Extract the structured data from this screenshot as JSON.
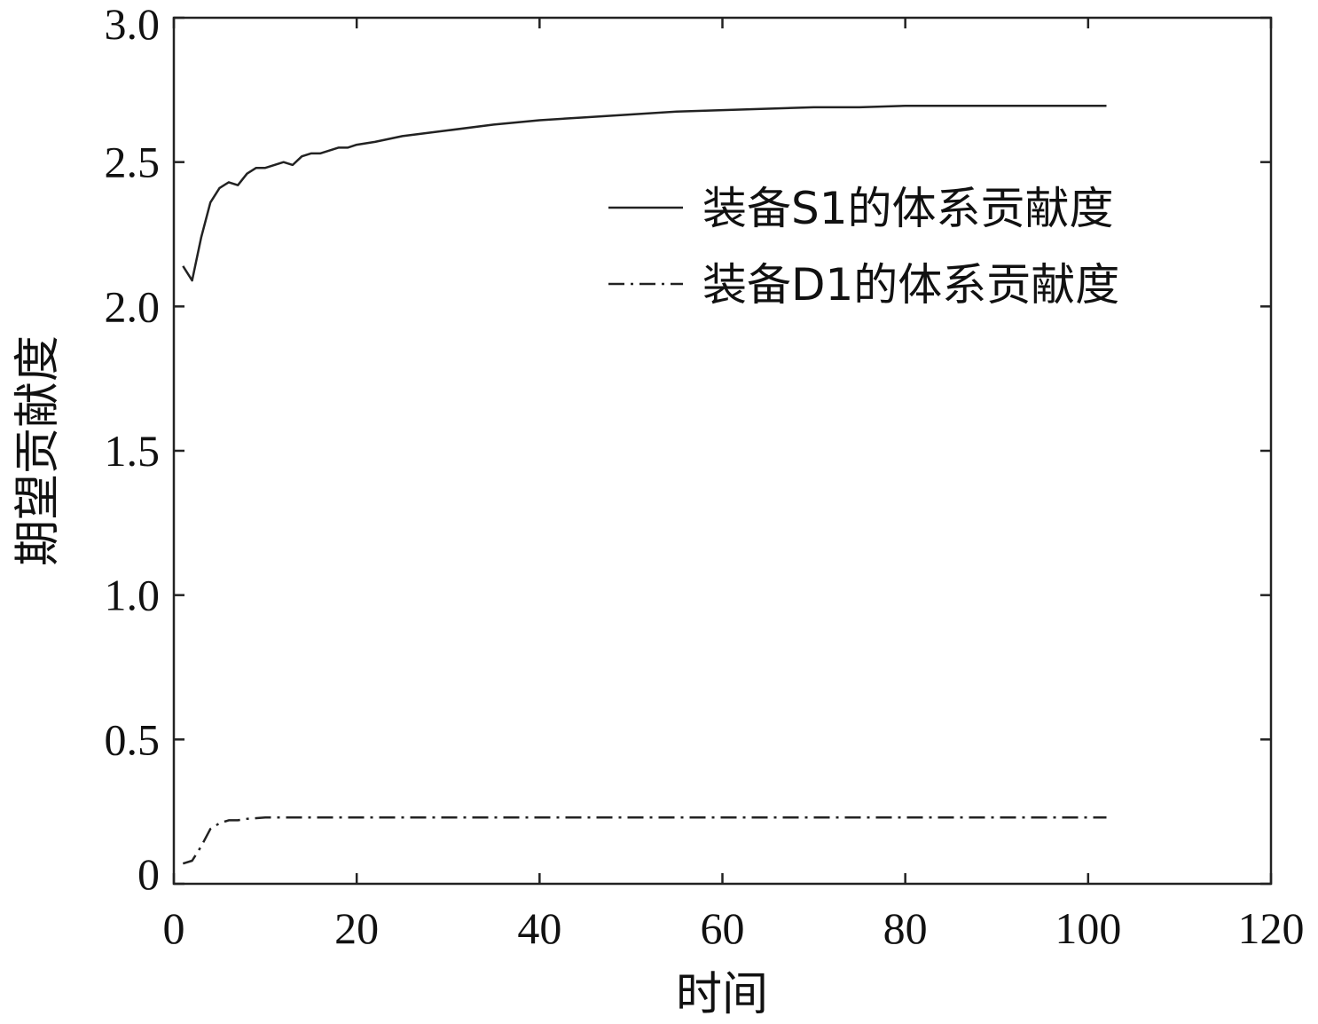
{
  "chart_data": {
    "type": "line",
    "title": "",
    "xlabel": "时间",
    "ylabel": "期望贡献度",
    "xlim": [
      0,
      120
    ],
    "ylim": [
      0,
      3.0
    ],
    "x_ticks": [
      0,
      20,
      40,
      60,
      80,
      100,
      120
    ],
    "x_tick_labels": [
      "0",
      "20",
      "40",
      "60",
      "80",
      "100",
      "120"
    ],
    "y_ticks": [
      0,
      0.5,
      1.0,
      1.5,
      2.0,
      2.5,
      3.0
    ],
    "y_tick_labels": [
      "0",
      "0.5",
      "1.0",
      "1.5",
      "2.0",
      "2.5",
      "3.0"
    ],
    "grid": false,
    "legend_position": "top-right",
    "series": [
      {
        "name": "装备S1的体系贡献度",
        "style": "solid",
        "color": "#222222",
        "points": [
          [
            1,
            2.14
          ],
          [
            2,
            2.09
          ],
          [
            3,
            2.24
          ],
          [
            4,
            2.36
          ],
          [
            5,
            2.41
          ],
          [
            6,
            2.43
          ],
          [
            7,
            2.42
          ],
          [
            8,
            2.46
          ],
          [
            9,
            2.48
          ],
          [
            10,
            2.48
          ],
          [
            11,
            2.49
          ],
          [
            12,
            2.5
          ],
          [
            13,
            2.49
          ],
          [
            14,
            2.52
          ],
          [
            15,
            2.53
          ],
          [
            16,
            2.53
          ],
          [
            17,
            2.54
          ],
          [
            18,
            2.55
          ],
          [
            19,
            2.55
          ],
          [
            20,
            2.56
          ],
          [
            22,
            2.57
          ],
          [
            25,
            2.59
          ],
          [
            30,
            2.61
          ],
          [
            35,
            2.63
          ],
          [
            40,
            2.645
          ],
          [
            45,
            2.655
          ],
          [
            50,
            2.665
          ],
          [
            55,
            2.675
          ],
          [
            60,
            2.68
          ],
          [
            65,
            2.685
          ],
          [
            70,
            2.69
          ],
          [
            75,
            2.69
          ],
          [
            80,
            2.695
          ],
          [
            90,
            2.695
          ],
          [
            102,
            2.695
          ]
        ]
      },
      {
        "name": "装备D1的体系贡献度",
        "style": "dash-dot",
        "color": "#222222",
        "points": [
          [
            1,
            0.07
          ],
          [
            2,
            0.08
          ],
          [
            3,
            0.13
          ],
          [
            4,
            0.19
          ],
          [
            5,
            0.21
          ],
          [
            6,
            0.22
          ],
          [
            7,
            0.22
          ],
          [
            8,
            0.225
          ],
          [
            10,
            0.23
          ],
          [
            20,
            0.23
          ],
          [
            40,
            0.23
          ],
          [
            60,
            0.23
          ],
          [
            80,
            0.23
          ],
          [
            100,
            0.23
          ],
          [
            102,
            0.23
          ]
        ]
      }
    ]
  }
}
